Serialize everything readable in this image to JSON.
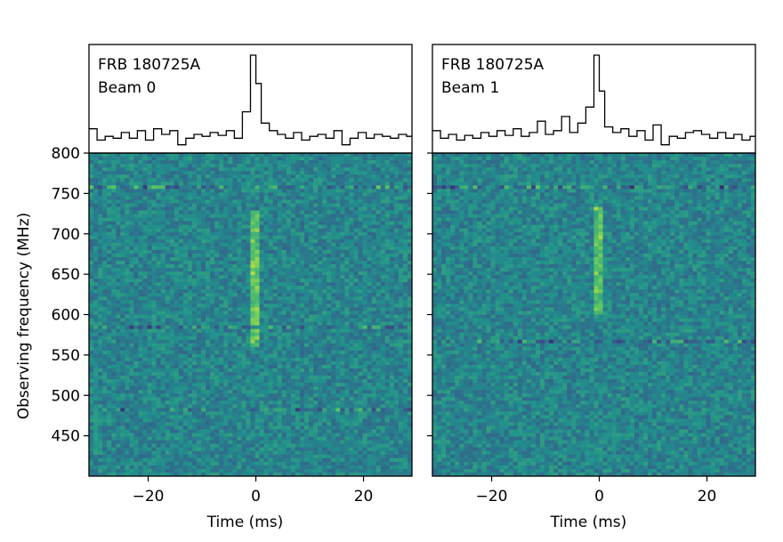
{
  "chart_data": {
    "type": "heatmap",
    "shared": {
      "ylabel": "Observing frequency (MHz)",
      "xlabel": "Time (ms)",
      "y_ticks": [
        800,
        750,
        700,
        650,
        600,
        550,
        500,
        450
      ],
      "ylim": [
        400,
        800
      ],
      "x_ticks": [
        -20,
        0,
        20
      ],
      "xlim": [
        -31,
        29
      ],
      "colormap": "viridis",
      "grid": false
    },
    "panels": [
      {
        "title": "FRB 180725A",
        "subtitle": "Beam 0",
        "pulse_time_ms": 0,
        "emission_band_mhz": [
          560,
          730
        ],
        "rfi_lines_mhz": [
          584,
          758,
          484
        ],
        "profile": {
          "x": [
            -31,
            -29.5,
            -28,
            -26.5,
            -25,
            -23.5,
            -22,
            -20.5,
            -19,
            -17.5,
            -16,
            -14.5,
            -13,
            -11.5,
            -10,
            -8.5,
            -7,
            -5.5,
            -4,
            -2.5,
            -1,
            0,
            1,
            2.5,
            4,
            5.5,
            7,
            8.5,
            10,
            11.5,
            13,
            14.5,
            16,
            17.5,
            19,
            20.5,
            22,
            23.5,
            25,
            26.5,
            28
          ],
          "y": [
            0.22,
            0.1,
            0.14,
            0.12,
            0.18,
            0.12,
            0.2,
            0.1,
            0.22,
            0.16,
            0.2,
            0.05,
            0.12,
            0.16,
            0.14,
            0.18,
            0.15,
            0.2,
            0.12,
            0.4,
            1.0,
            0.7,
            0.28,
            0.2,
            0.16,
            0.12,
            0.18,
            0.1,
            0.14,
            0.16,
            0.12,
            0.2,
            0.05,
            0.12,
            0.18,
            0.12,
            0.16,
            0.14,
            0.12,
            0.16,
            0.14
          ]
        }
      },
      {
        "title": "FRB 180725A",
        "subtitle": "Beam 1",
        "pulse_time_ms": 0,
        "emission_band_mhz": [
          600,
          735
        ],
        "rfi_lines_mhz": [
          568,
          758
        ],
        "profile": {
          "x": [
            -31,
            -29.5,
            -28,
            -26.5,
            -25,
            -23.5,
            -22,
            -20.5,
            -19,
            -17.5,
            -16,
            -14.5,
            -13,
            -11.5,
            -10,
            -8.5,
            -7,
            -5.5,
            -4,
            -2.5,
            -1,
            0,
            1,
            2.5,
            4,
            5.5,
            7,
            8.5,
            10,
            11.5,
            13,
            14.5,
            16,
            17.5,
            19,
            20.5,
            22,
            23.5,
            25,
            26.5,
            28
          ],
          "y": [
            0.2,
            0.12,
            0.16,
            0.1,
            0.15,
            0.12,
            0.18,
            0.14,
            0.2,
            0.15,
            0.22,
            0.14,
            0.18,
            0.3,
            0.16,
            0.2,
            0.35,
            0.18,
            0.28,
            0.45,
            1.0,
            0.62,
            0.24,
            0.18,
            0.22,
            0.14,
            0.2,
            0.1,
            0.26,
            0.05,
            0.14,
            0.12,
            0.18,
            0.2,
            0.16,
            0.12,
            0.18,
            0.12,
            0.16,
            0.1,
            0.14
          ]
        }
      }
    ]
  }
}
